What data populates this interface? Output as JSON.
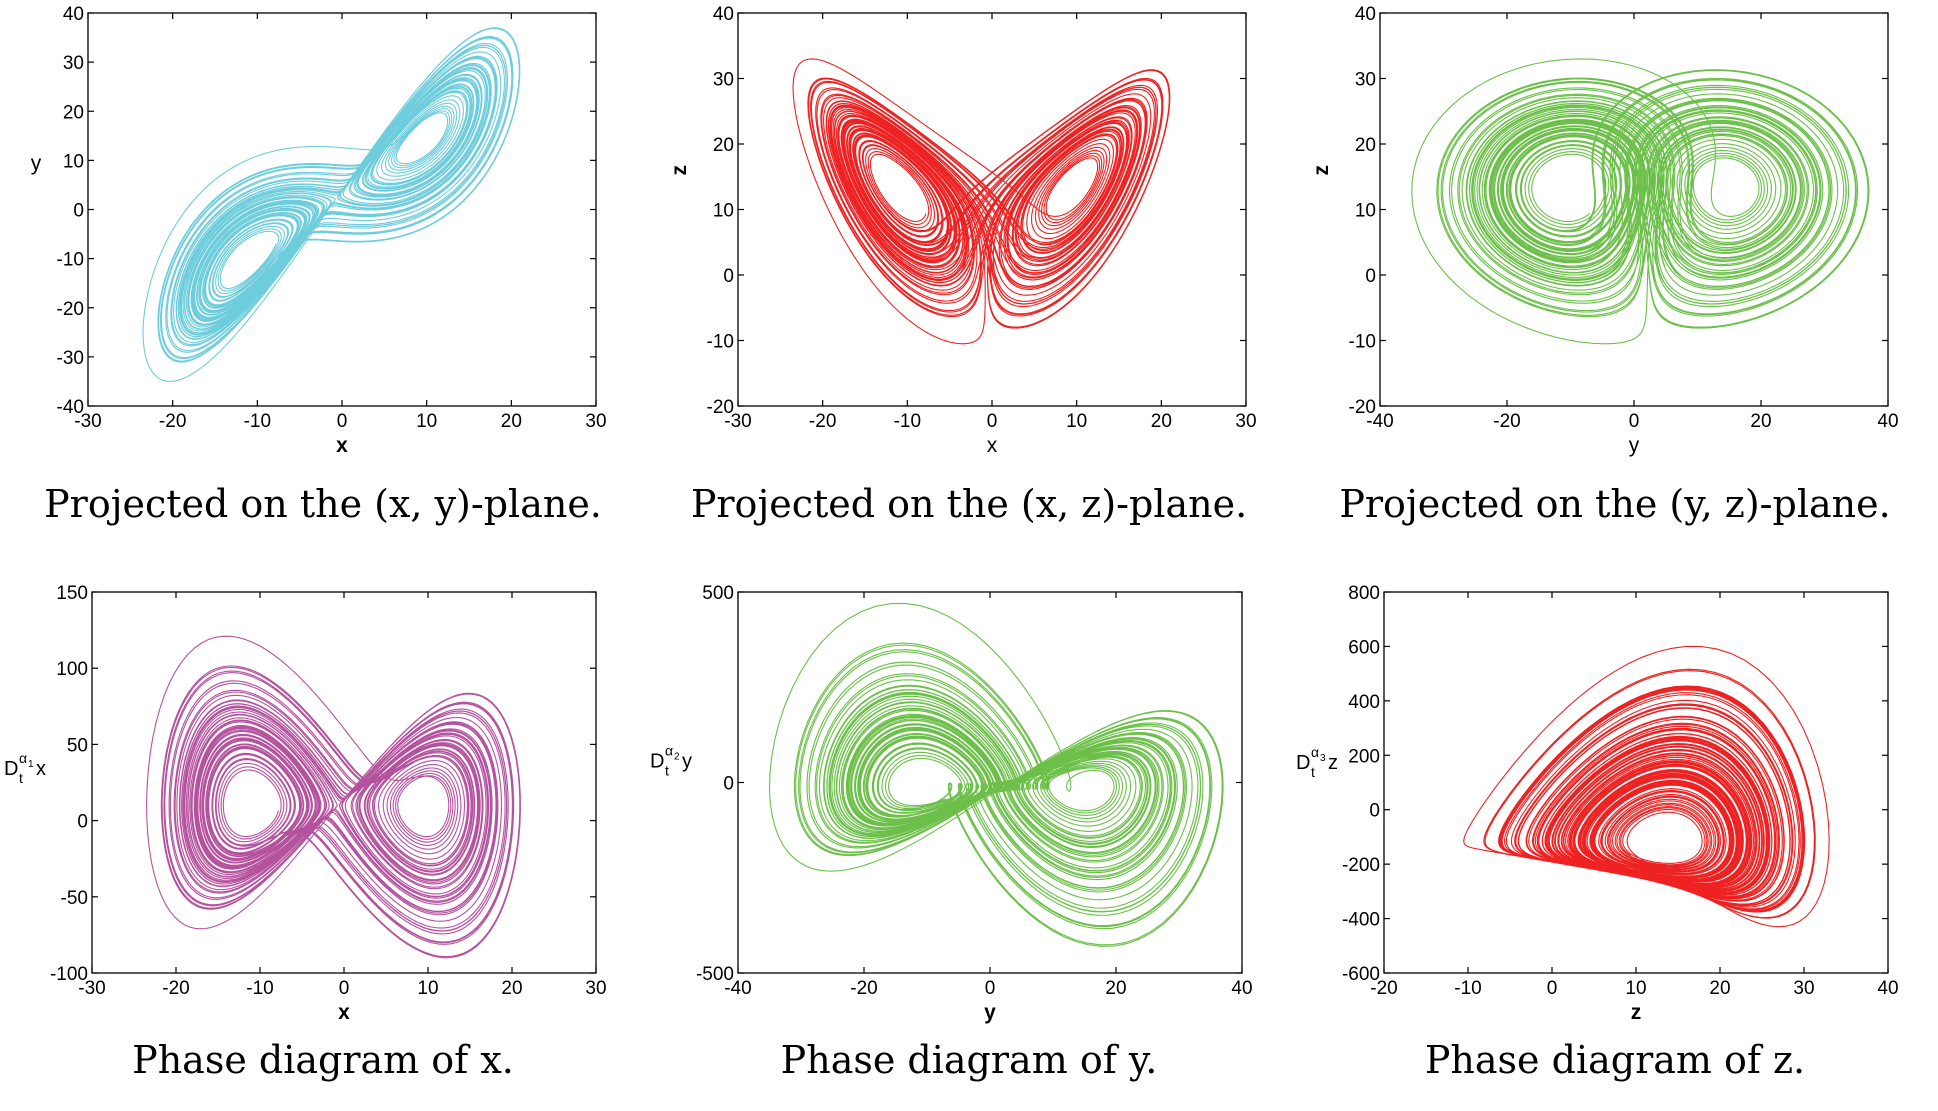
{
  "chart_data": [
    {
      "type": "line",
      "title": "",
      "caption": "Projected on the (x, y)-plane.",
      "xlabel": "x",
      "ylabel": "y",
      "xlim": [
        -30,
        30
      ],
      "ylim": [
        -40,
        40
      ],
      "xticks": [
        -30,
        -20,
        -10,
        0,
        10,
        20,
        30
      ],
      "yticks": [
        -40,
        -30,
        -20,
        -10,
        0,
        10,
        20,
        30,
        40
      ],
      "color": "#6ecddc",
      "attractor": {
        "mode": "xy",
        "x_range": [
          -23.5,
          21.0
        ],
        "y_range": [
          -35.0,
          37.0
        ]
      }
    },
    {
      "type": "line",
      "title": "",
      "caption": "Projected on the (x, z)-plane.",
      "xlabel": "x",
      "ylabel": "z",
      "xlim": [
        -30,
        30
      ],
      "ylim": [
        -20,
        40
      ],
      "xticks": [
        -30,
        -20,
        -10,
        0,
        10,
        20,
        30
      ],
      "yticks": [
        -20,
        -10,
        0,
        10,
        20,
        30,
        40
      ],
      "color": "#ee2222",
      "attractor": {
        "mode": "xz",
        "x_range": [
          -23.5,
          21.0
        ],
        "y_range": [
          -10.5,
          33.0
        ]
      }
    },
    {
      "type": "line",
      "title": "",
      "caption": "Projected on the (y, z)-plane.",
      "xlabel": "y",
      "ylabel": "z",
      "xlim": [
        -40,
        40
      ],
      "ylim": [
        -20,
        40
      ],
      "xticks": [
        -40,
        -20,
        0,
        20,
        40
      ],
      "yticks": [
        -20,
        -10,
        0,
        10,
        20,
        30,
        40
      ],
      "color": "#6cc04a",
      "attractor": {
        "mode": "yz",
        "x_range": [
          -35.0,
          37.0
        ],
        "y_range": [
          -10.5,
          33.0
        ]
      }
    },
    {
      "type": "line",
      "title": "",
      "caption": "Phase diagram of x.",
      "xlabel": "x",
      "ylabel_base": "D",
      "ylabel_sub": "t",
      "ylabel_sup": "α",
      "ylabel_supsub": "1",
      "ylabel_var": "x",
      "xlim": [
        -30,
        30
      ],
      "ylim": [
        -100,
        150
      ],
      "xticks": [
        -30,
        -20,
        -10,
        0,
        10,
        20,
        30
      ],
      "yticks": [
        -100,
        -50,
        0,
        50,
        100,
        150
      ],
      "color": "#b5529e",
      "attractor": {
        "mode": "dx",
        "x_range": [
          -23.5,
          21.0
        ],
        "y_range": [
          -90.0,
          121.0
        ]
      }
    },
    {
      "type": "line",
      "title": "",
      "caption": "Phase diagram of y.",
      "xlabel": "y",
      "ylabel_base": "D",
      "ylabel_sub": "t",
      "ylabel_sup": "α",
      "ylabel_supsub": "2",
      "ylabel_var": "y",
      "xlim": [
        -40,
        40
      ],
      "ylim": [
        -500,
        500
      ],
      "xticks": [
        -40,
        -20,
        0,
        20,
        40
      ],
      "yticks": [
        -500,
        0,
        500
      ],
      "color": "#6cc04a",
      "attractor": {
        "mode": "dy",
        "x_range": [
          -35.0,
          37.0
        ],
        "y_range": [
          -430.0,
          470.0
        ]
      }
    },
    {
      "type": "line",
      "title": "",
      "caption": "Phase diagram of z.",
      "xlabel": "z",
      "ylabel_base": "D",
      "ylabel_sub": "t",
      "ylabel_sup": "α",
      "ylabel_supsub": "3",
      "ylabel_var": "z",
      "xlim": [
        -20,
        40
      ],
      "ylim": [
        -600,
        800
      ],
      "xticks": [
        -20,
        -10,
        0,
        10,
        20,
        30,
        40
      ],
      "yticks": [
        -600,
        -400,
        -200,
        0,
        200,
        400,
        600,
        800
      ],
      "color": "#ee2222",
      "attractor": {
        "mode": "dz",
        "x_range": [
          -10.5,
          33.0
        ],
        "y_range": [
          -430.0,
          600.0
        ]
      }
    }
  ]
}
